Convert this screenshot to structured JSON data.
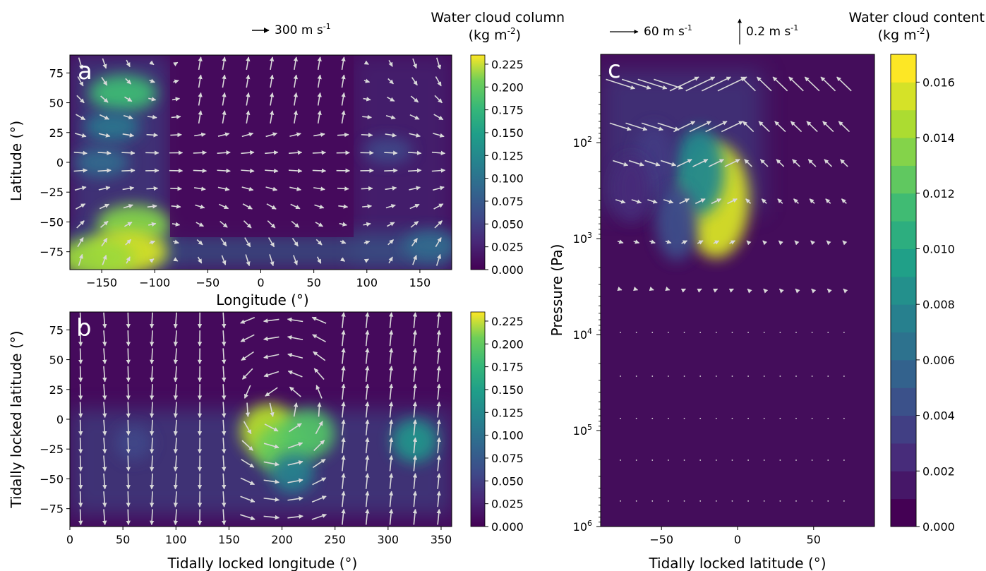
{
  "chart_data": [
    {
      "panel": "a",
      "type": "heatmap",
      "xlabel": "Longitude (°)",
      "ylabel": "Latitude (°)",
      "xlim": [
        -180,
        180
      ],
      "ylim": [
        -90,
        90
      ],
      "xticks": [
        -150,
        -100,
        -50,
        0,
        50,
        100,
        150
      ],
      "yticks": [
        -75,
        -50,
        -25,
        0,
        25,
        50,
        75
      ],
      "colorbar": {
        "title_line1": "Water cloud column",
        "title_line2": "(kg m",
        "title_sup": "-2",
        "title_end": ")",
        "range": [
          0,
          0.235
        ],
        "ticks": [
          "0.000",
          "0.025",
          "0.050",
          "0.075",
          "0.100",
          "0.125",
          "0.150",
          "0.175",
          "0.200",
          "0.225"
        ]
      },
      "arrow_key": {
        "value": "300 m s",
        "sup": "-1"
      },
      "cloud_features": [
        {
          "lon": -130,
          "lat": 58,
          "value": 0.16
        },
        {
          "lon": -140,
          "lat": 30,
          "value": 0.09
        },
        {
          "lon": -120,
          "lat": -52,
          "value": 0.19
        },
        {
          "lon": -125,
          "lat": -75,
          "value": 0.22
        },
        {
          "lon": -155,
          "lat": -80,
          "value": 0.2
        },
        {
          "lon": -150,
          "lat": 0,
          "value": 0.08
        },
        {
          "lon": 160,
          "lat": -70,
          "value": 0.08
        },
        {
          "lon": 120,
          "lat": 10,
          "value": 0.05
        }
      ]
    },
    {
      "panel": "b",
      "type": "heatmap",
      "xlabel": "Tidally locked longitude (°)",
      "ylabel": "Tidally locked latitude (°)",
      "xlim": [
        0,
        360
      ],
      "ylim": [
        -90,
        90
      ],
      "xticks": [
        0,
        50,
        100,
        150,
        200,
        250,
        300,
        350
      ],
      "yticks": [
        -75,
        -50,
        -25,
        0,
        25,
        50,
        75
      ],
      "colorbar": {
        "range": [
          0,
          0.235
        ],
        "ticks": [
          "0.000",
          "0.025",
          "0.050",
          "0.075",
          "0.100",
          "0.125",
          "0.150",
          "0.175",
          "0.200",
          "0.225"
        ]
      },
      "cloud_features": [
        {
          "lon": 188,
          "lat": -10,
          "value": 0.21
        },
        {
          "lon": 200,
          "lat": -25,
          "value": 0.18
        },
        {
          "lon": 225,
          "lat": -12,
          "value": 0.17
        },
        {
          "lon": 210,
          "lat": -45,
          "value": 0.1
        },
        {
          "lon": 325,
          "lat": -18,
          "value": 0.12
        },
        {
          "lon": 60,
          "lat": -20,
          "value": 0.05
        }
      ]
    },
    {
      "panel": "c",
      "type": "heatmap",
      "xlabel": "Tidally locked latitude (°)",
      "ylabel": "Pressure (Pa)",
      "xlim": [
        -90,
        90
      ],
      "ylog": true,
      "ylim": [
        1000000,
        12
      ],
      "xticks": [
        -50,
        0,
        50
      ],
      "yticks": [
        {
          "base": "10",
          "exp": "2",
          "value": 100
        },
        {
          "base": "10",
          "exp": "3",
          "value": 1000
        },
        {
          "base": "10",
          "exp": "4",
          "value": 10000
        },
        {
          "base": "10",
          "exp": "5",
          "value": 100000
        },
        {
          "base": "10",
          "exp": "6",
          "value": 1000000
        }
      ],
      "colorbar": {
        "title_line1": "Water cloud content",
        "title_line2": "(kg m",
        "title_sup": "-2",
        "title_end": ")",
        "range": [
          0,
          0.017
        ],
        "ticks": [
          "0.000",
          "0.002",
          "0.004",
          "0.006",
          "0.008",
          "0.010",
          "0.012",
          "0.014",
          "0.016"
        ]
      },
      "arrow_key_h": {
        "value": "60 m s",
        "sup": "-1"
      },
      "arrow_key_v": {
        "value": "0.2 m s",
        "sup": "-1"
      },
      "cloud_features": [
        {
          "lat": -14,
          "p": 400,
          "value": 0.016
        },
        {
          "lat": -25,
          "p": 200,
          "value": 0.008
        },
        {
          "lat": -55,
          "p": 150,
          "value": 0.003
        },
        {
          "lat": -40,
          "p": 700,
          "value": 0.004
        },
        {
          "lat": -70,
          "p": 300,
          "value": 0.002
        }
      ]
    }
  ],
  "panel_labels": [
    "a",
    "b",
    "c"
  ]
}
